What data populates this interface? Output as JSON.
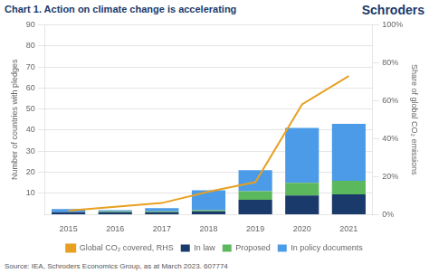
{
  "chart_data": {
    "type": "bar",
    "title": "Chart 1. Action on climate change is accelerating",
    "ylabel": "Number of countries with pledges",
    "y2label": "Share of global CO₂ emissions",
    "annotations": [
      "Schroders",
      "Source: IEA, Schroders Economics Group, as at March 2023. 607774"
    ],
    "categories": [
      "2015",
      "2016",
      "2017",
      "2018",
      "2019",
      "2020",
      "2021"
    ],
    "series": [
      {
        "name": "In law",
        "color": "#1a3a6b",
        "values": [
          1.0,
          1.0,
          1.0,
          1.5,
          7.0,
          9.0,
          9.5
        ]
      },
      {
        "name": "Proposed",
        "color": "#5cb85c",
        "values": [
          0.0,
          0.5,
          0.5,
          0.5,
          4.0,
          6.0,
          6.5
        ]
      },
      {
        "name": "In policy documents",
        "color": "#4c9be8",
        "values": [
          1.5,
          0.5,
          1.5,
          9.5,
          10.0,
          26.0,
          27.0
        ]
      },
      {
        "name": "Global CO₂ covered, RHS",
        "type": "line",
        "axis": "y2",
        "color": "#e8a020",
        "values": [
          2.0,
          4.0,
          6.0,
          12.0,
          17.0,
          58.0,
          73.0
        ]
      }
    ],
    "stacked": true,
    "ylim": [
      0,
      90
    ],
    "yticks": [
      10,
      20,
      30,
      40,
      50,
      60,
      70,
      80,
      90
    ],
    "y2lim": [
      0,
      100
    ],
    "y2ticks": [
      {
        "value": 0,
        "label": "0%"
      },
      {
        "value": 20,
        "label": "20%"
      },
      {
        "value": 40,
        "label": "40%"
      },
      {
        "value": 60,
        "label": "60%"
      },
      {
        "value": 80,
        "label": "80%"
      },
      {
        "value": 100,
        "label": "100%"
      }
    ],
    "grid": true,
    "legend": "bottom"
  }
}
